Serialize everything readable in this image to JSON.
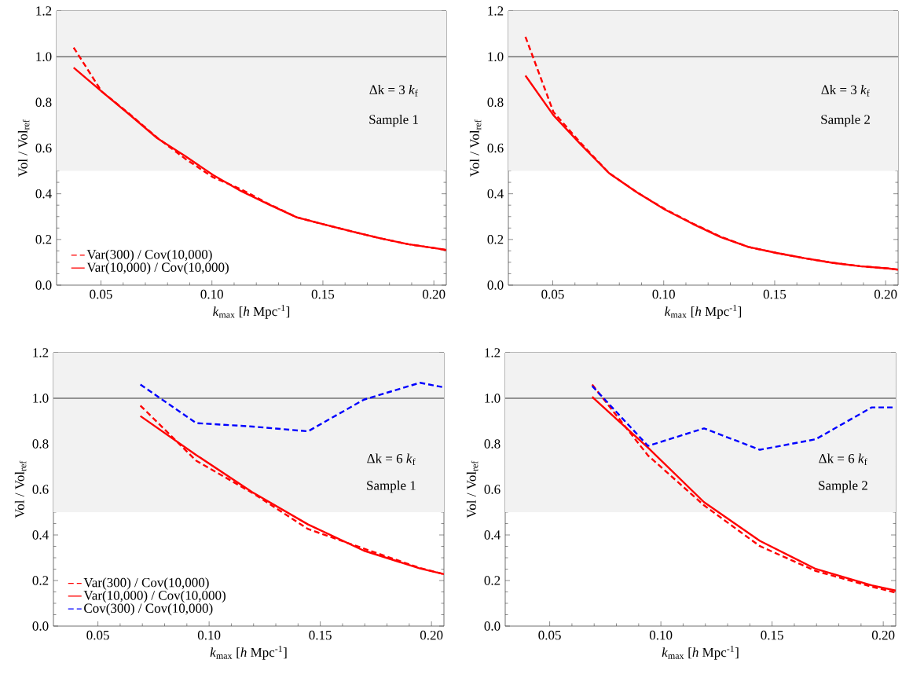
{
  "chart_data": [
    {
      "type": "line",
      "xlabel": "*k*$_{max}$ [*h* Mpc$^{-1}$]",
      "ylabel": "Vol / Vol$_{ref}$",
      "annotations": [
        "Δk = 3 *k*$_{f}$",
        "Sample 1"
      ],
      "x": [
        0.0377,
        0.0503,
        0.0628,
        0.0754,
        0.088,
        0.1005,
        0.1131,
        0.1257,
        0.1382,
        0.1508,
        0.1634,
        0.1759,
        0.1885,
        0.2011,
        0.2056
      ],
      "series": [
        {
          "name": "Var(300) / Cov(10,000)",
          "color": "#ff0000",
          "line_style": "dashed",
          "values": [
            1.04,
            0.848,
            0.75,
            0.645,
            0.553,
            0.472,
            0.42,
            0.355,
            0.297,
            0.265,
            0.234,
            0.205,
            0.179,
            0.161,
            0.154
          ]
        },
        {
          "name": "Var(10,000) / Cov(10,000)",
          "color": "#ff0000",
          "line_style": "solid",
          "values": [
            0.952,
            0.848,
            0.747,
            0.643,
            0.565,
            0.482,
            0.412,
            0.353,
            0.297,
            0.265,
            0.234,
            0.205,
            0.179,
            0.161,
            0.154
          ]
        }
      ],
      "xlim": [
        0.03,
        0.2056
      ],
      "ylim": [
        0,
        1.2
      ],
      "xticks": [
        {
          "value": 0.05,
          "label": "0.05"
        },
        {
          "value": 0.1,
          "label": "0.10"
        },
        {
          "value": 0.15,
          "label": "0.15"
        },
        {
          "value": 0.2,
          "label": "0.20"
        }
      ],
      "yticks": [
        {
          "value": 0,
          "label": "0.0"
        },
        {
          "value": 0.2,
          "label": "0.2"
        },
        {
          "value": 0.4,
          "label": "0.4"
        },
        {
          "value": 0.6,
          "label": "0.6"
        },
        {
          "value": 0.8,
          "label": "0.8"
        },
        {
          "value": 1.0,
          "label": "1.0"
        },
        {
          "value": 1.2,
          "label": "1.2"
        }
      ],
      "ref_lines": [
        {
          "axis": "y",
          "value": 1.0,
          "color": "#000000"
        }
      ],
      "bands": [
        {
          "axis": "y",
          "from": 0.5,
          "to": 1.2,
          "color": "#f2f2f2"
        }
      ],
      "legend": "bottom left",
      "grid": false
    },
    {
      "type": "line",
      "xlabel": "*k*$_{max}$ [*h* Mpc$^{-1}$]",
      "ylabel": "Vol / Vol$_{ref}$",
      "annotations": [
        "Δk = 3 *k*$_{f}$",
        "Sample 2"
      ],
      "x": [
        0.0377,
        0.0503,
        0.0628,
        0.0754,
        0.088,
        0.1005,
        0.1131,
        0.1257,
        0.1382,
        0.1508,
        0.1634,
        0.1759,
        0.1885,
        0.2011,
        0.2056
      ],
      "series": [
        {
          "color": "#ff0000",
          "line_style": "dashed",
          "values": [
            1.087,
            0.758,
            0.62,
            0.49,
            0.406,
            0.333,
            0.27,
            0.212,
            0.167,
            0.141,
            0.118,
            0.098,
            0.083,
            0.073,
            0.068
          ]
        },
        {
          "color": "#ff0000",
          "line_style": "solid",
          "values": [
            0.917,
            0.744,
            0.614,
            0.49,
            0.406,
            0.331,
            0.268,
            0.21,
            0.167,
            0.141,
            0.118,
            0.098,
            0.083,
            0.073,
            0.068
          ]
        }
      ],
      "xlim": [
        0.03,
        0.2056
      ],
      "ylim": [
        0,
        1.2
      ],
      "xticks": [
        {
          "value": 0.05,
          "label": "0.05"
        },
        {
          "value": 0.1,
          "label": "0.10"
        },
        {
          "value": 0.15,
          "label": "0.15"
        },
        {
          "value": 0.2,
          "label": "0.20"
        }
      ],
      "yticks": [
        {
          "value": 0,
          "label": "0.0"
        },
        {
          "value": 0.2,
          "label": "0.2"
        },
        {
          "value": 0.4,
          "label": "0.4"
        },
        {
          "value": 0.6,
          "label": "0.6"
        },
        {
          "value": 0.8,
          "label": "0.8"
        },
        {
          "value": 1.0,
          "label": "1.0"
        },
        {
          "value": 1.2,
          "label": "1.2"
        }
      ],
      "ref_lines": [
        {
          "axis": "y",
          "value": 1.0,
          "color": "#000000"
        }
      ],
      "bands": [
        {
          "axis": "y",
          "from": 0.5,
          "to": 1.2,
          "color": "#f2f2f2"
        }
      ],
      "grid": false
    },
    {
      "type": "line",
      "xlabel": "*k*$_{max}$ [*h* Mpc$^{-1}$]",
      "ylabel": "Vol / Vol$_{ref}$",
      "annotations": [
        "Δk = 6 *k*$_{f}$",
        "Sample 1"
      ],
      "x": [
        0.0691,
        0.0942,
        0.1194,
        0.1445,
        0.1696,
        0.1948,
        0.2056
      ],
      "series": [
        {
          "name": "Var(300) / Cov(10,000)",
          "color": "#ff0000",
          "line_style": "dashed",
          "values": [
            0.968,
            0.726,
            0.585,
            0.426,
            0.34,
            0.255,
            0.228
          ]
        },
        {
          "name": "Var(10,000) / Cov(10,000)",
          "color": "#ff0000",
          "line_style": "solid",
          "values": [
            0.922,
            0.751,
            0.588,
            0.446,
            0.331,
            0.253,
            0.228
          ]
        },
        {
          "name": "Cov(300) / Cov(10,000)",
          "color": "#0000ff",
          "line_style": "dashed",
          "values": [
            1.06,
            0.891,
            0.876,
            0.855,
            0.994,
            1.068,
            1.048
          ]
        }
      ],
      "xlim": [
        0.03,
        0.2056
      ],
      "ylim": [
        0,
        1.2
      ],
      "xticks": [
        {
          "value": 0.05,
          "label": "0.05"
        },
        {
          "value": 0.1,
          "label": "0.10"
        },
        {
          "value": 0.15,
          "label": "0.15"
        },
        {
          "value": 0.2,
          "label": "0.20"
        }
      ],
      "yticks": [
        {
          "value": 0,
          "label": "0.0"
        },
        {
          "value": 0.2,
          "label": "0.2"
        },
        {
          "value": 0.4,
          "label": "0.4"
        },
        {
          "value": 0.6,
          "label": "0.6"
        },
        {
          "value": 0.8,
          "label": "0.8"
        },
        {
          "value": 1.0,
          "label": "1.0"
        },
        {
          "value": 1.2,
          "label": "1.2"
        }
      ],
      "ref_lines": [
        {
          "axis": "y",
          "value": 1.0,
          "color": "#000000"
        }
      ],
      "bands": [
        {
          "axis": "y",
          "from": 0.5,
          "to": 1.2,
          "color": "#f2f2f2"
        }
      ],
      "legend": "bottom left",
      "grid": false
    },
    {
      "type": "line",
      "xlabel": "*k*$_{max}$ [*h* Mpc$^{-1}$]",
      "ylabel": "Vol / Vol$_{ref}$",
      "annotations": [
        "Δk = 6 *k*$_{f}$",
        "Sample 2"
      ],
      "x": [
        0.0691,
        0.0942,
        0.1194,
        0.1445,
        0.1696,
        0.1948,
        0.2056
      ],
      "series": [
        {
          "color": "#ff0000",
          "line_style": "dashed",
          "values": [
            1.06,
            0.749,
            0.53,
            0.351,
            0.242,
            0.173,
            0.147
          ]
        },
        {
          "color": "#ff0000",
          "line_style": "solid",
          "values": [
            1.006,
            0.783,
            0.544,
            0.374,
            0.251,
            0.179,
            0.156
          ]
        },
        {
          "color": "#0000ff",
          "line_style": "dashed",
          "values": [
            1.054,
            0.791,
            0.868,
            0.774,
            0.82,
            0.96,
            0.96
          ]
        }
      ],
      "xlim": [
        0.03,
        0.2056
      ],
      "ylim": [
        0,
        1.2
      ],
      "xticks": [
        {
          "value": 0.05,
          "label": "0.05"
        },
        {
          "value": 0.1,
          "label": "0.10"
        },
        {
          "value": 0.15,
          "label": "0.15"
        },
        {
          "value": 0.2,
          "label": "0.20"
        }
      ],
      "yticks": [
        {
          "value": 0,
          "label": "0.0"
        },
        {
          "value": 0.2,
          "label": "0.2"
        },
        {
          "value": 0.4,
          "label": "0.4"
        },
        {
          "value": 0.6,
          "label": "0.6"
        },
        {
          "value": 0.8,
          "label": "0.8"
        },
        {
          "value": 1.0,
          "label": "1.0"
        },
        {
          "value": 1.2,
          "label": "1.2"
        }
      ],
      "ref_lines": [
        {
          "axis": "y",
          "value": 1.0,
          "color": "#000000"
        }
      ],
      "bands": [
        {
          "axis": "y",
          "from": 0.5,
          "to": 1.2,
          "color": "#f2f2f2"
        }
      ],
      "grid": false
    }
  ]
}
